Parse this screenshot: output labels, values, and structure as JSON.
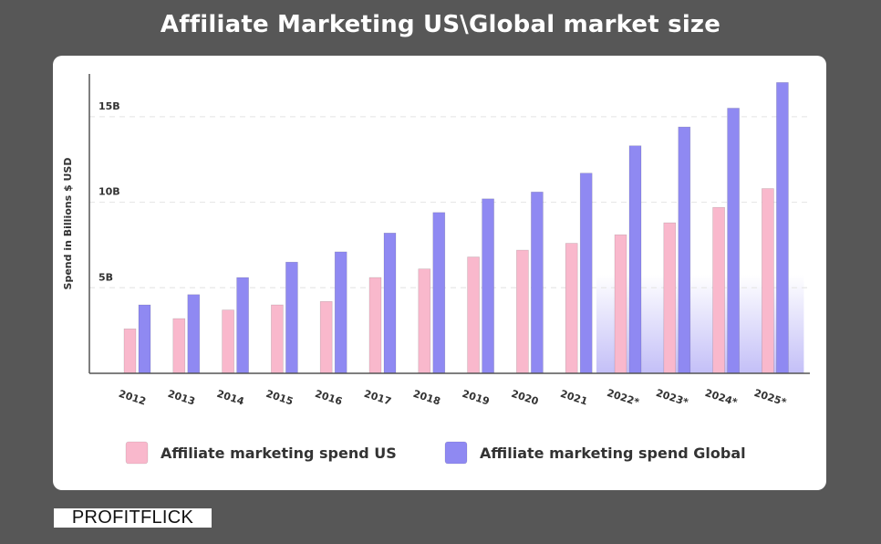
{
  "title": "Affiliate Marketing US\\Global market size",
  "brand": "PROFITFLICK",
  "chart_data": {
    "type": "bar",
    "title": "Affiliate Marketing US\\Global market size",
    "xlabel": "",
    "ylabel": "Spend in Billions $ USD",
    "ylim": [
      0,
      17.5
    ],
    "yticks": [
      {
        "value": 5,
        "label": "5B"
      },
      {
        "value": 10,
        "label": "10B"
      },
      {
        "value": 15,
        "label": "15B"
      }
    ],
    "grid": true,
    "legend_position": "bottom",
    "categories": [
      "2012",
      "2013",
      "2014",
      "2015",
      "2016",
      "2017",
      "2018",
      "2019",
      "2020",
      "2021",
      "2022*",
      "2023*",
      "2024*",
      "2025*"
    ],
    "series": [
      {
        "name": "Affiliate marketing spend US",
        "color": "#f9b8cc",
        "values": [
          2.6,
          3.2,
          3.7,
          4.0,
          4.2,
          5.6,
          6.1,
          6.8,
          7.2,
          7.6,
          8.1,
          8.8,
          9.7,
          10.8
        ]
      },
      {
        "name": "Affiliate marketing spend Global",
        "color": "#8f89f2",
        "values": [
          4.0,
          4.6,
          5.6,
          6.5,
          7.1,
          8.2,
          9.4,
          10.2,
          10.6,
          11.7,
          13.3,
          14.4,
          15.5,
          17.0
        ]
      }
    ],
    "colors": {
      "axis": "#555555",
      "grid": "#e8e8e8",
      "tick_text": "#333333",
      "forecast_shade": "#b9b4f6"
    }
  }
}
